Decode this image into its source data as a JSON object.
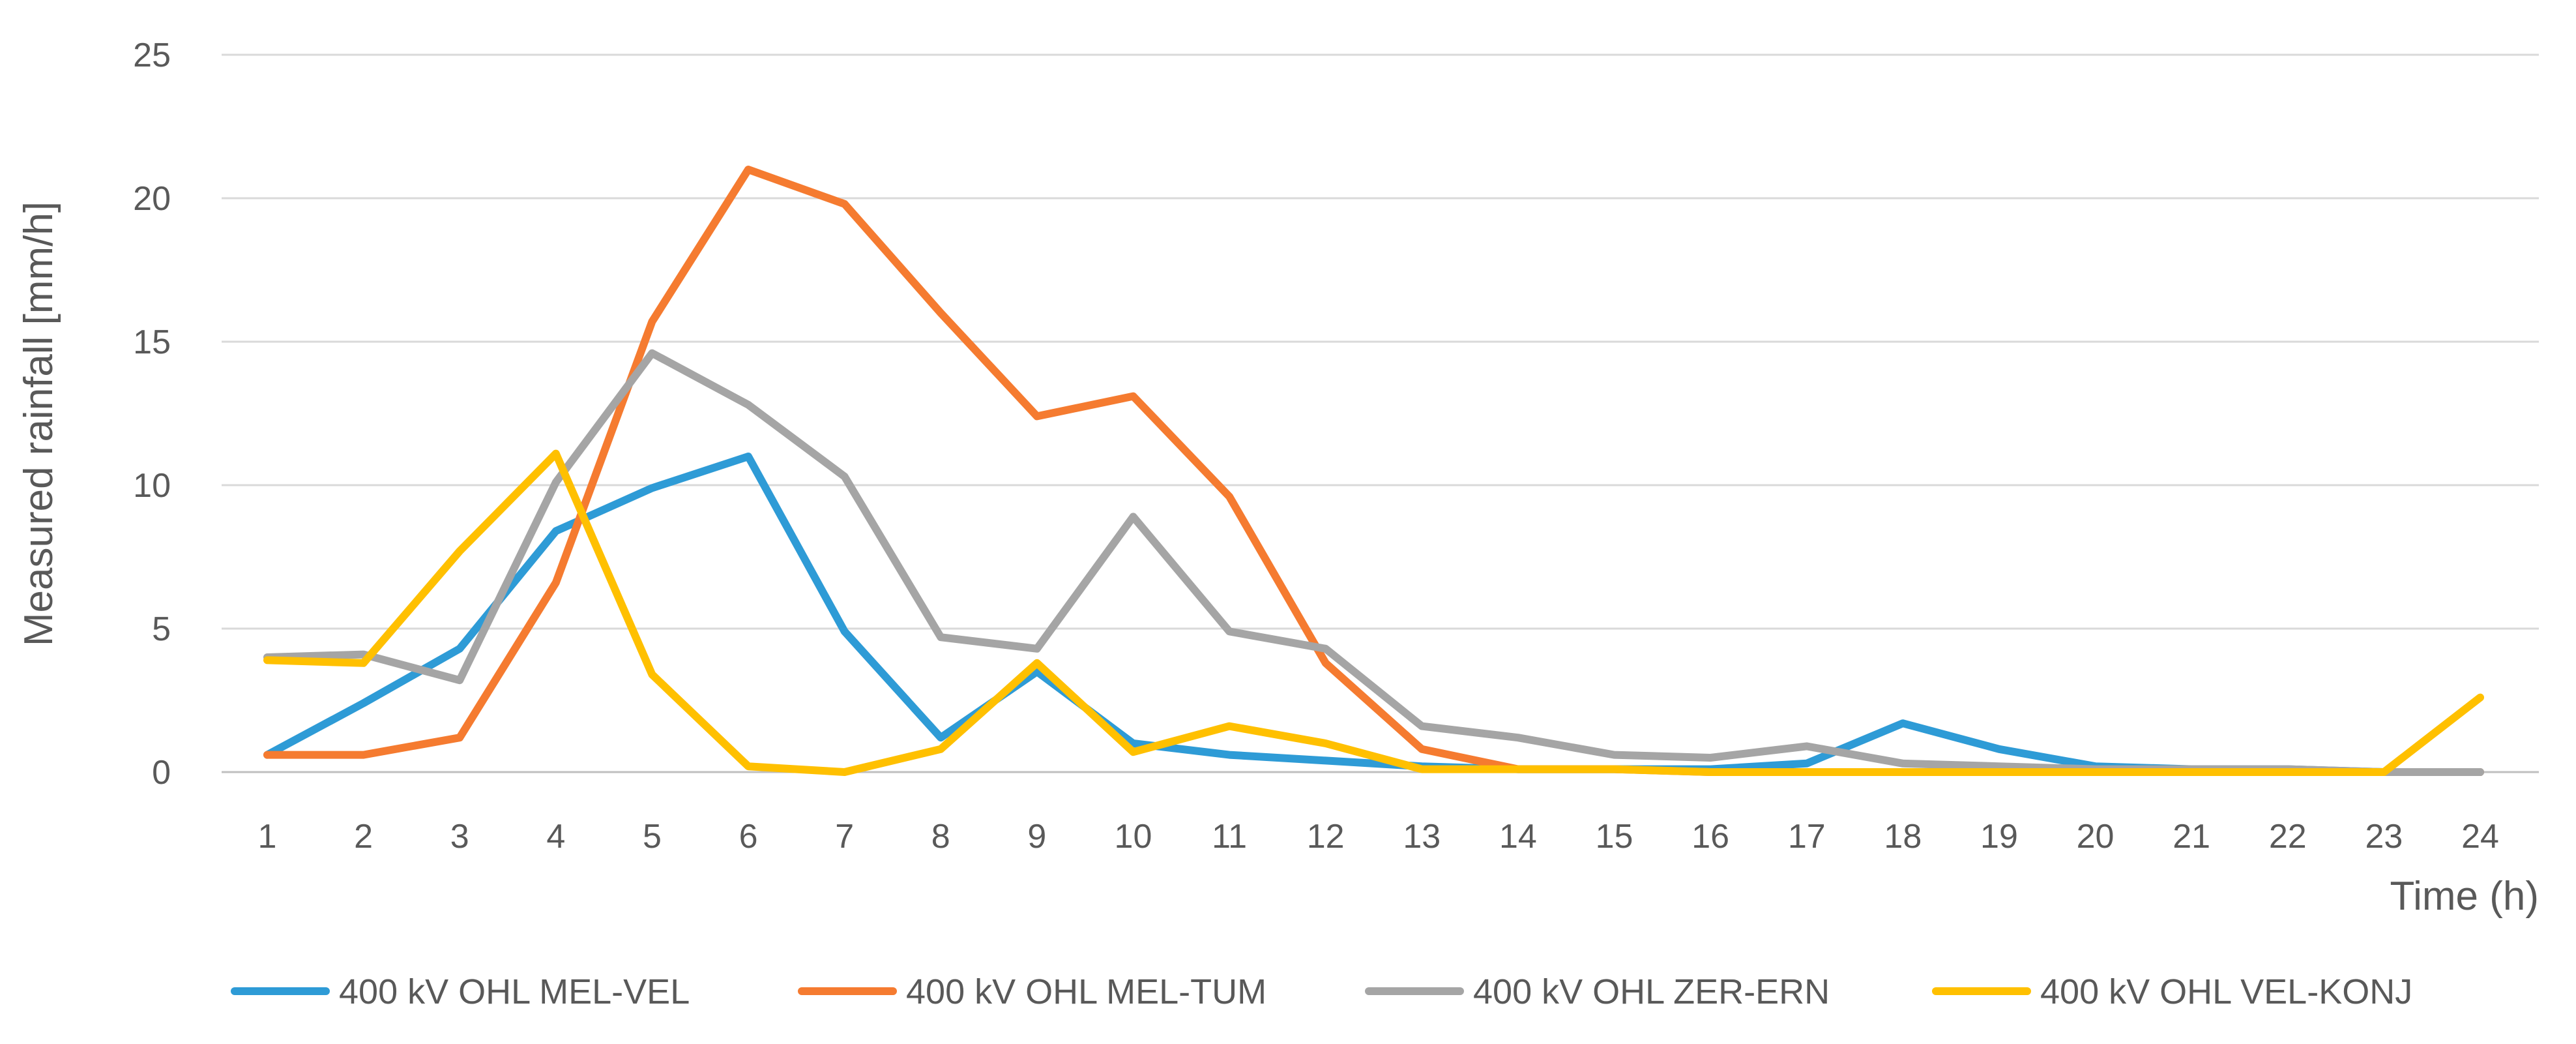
{
  "chart_data": {
    "type": "line",
    "title": "",
    "xlabel": "Time (h)",
    "ylabel": "Measured rainfall  [mm/h]",
    "ylim": [
      0,
      25
    ],
    "yticks": [
      "0",
      "5",
      "10",
      "15",
      "20",
      "25"
    ],
    "grid": true,
    "legend_position": "bottom",
    "categories": [
      "1",
      "2",
      "3",
      "4",
      "5",
      "6",
      "7",
      "8",
      "9",
      "10",
      "11",
      "12",
      "13",
      "14",
      "15",
      "16",
      "17",
      "18",
      "19",
      "20",
      "21",
      "22",
      "23",
      "24"
    ],
    "series": [
      {
        "name": "400 kV OHL MEL-VEL",
        "color": "#2E9BD6",
        "values": [
          0.6,
          2.4,
          4.3,
          8.4,
          9.9,
          11.0,
          4.9,
          1.2,
          3.5,
          1.0,
          0.6,
          0.4,
          0.2,
          0.1,
          0.1,
          0.1,
          0.3,
          1.7,
          0.8,
          0.2,
          0.1,
          0.1,
          0.0,
          0.0
        ]
      },
      {
        "name": "400 kV OHL MEL-TUM",
        "color": "#F57B30",
        "values": [
          0.6,
          0.6,
          1.2,
          6.6,
          15.7,
          21.0,
          19.8,
          16.0,
          12.4,
          13.1,
          9.6,
          3.8,
          0.8,
          0.1,
          0.1,
          0.0,
          0.0,
          0.0,
          0.0,
          0.0,
          0.0,
          0.0,
          0.0,
          0.0
        ]
      },
      {
        "name": "400 kV OHL ZER-ERN",
        "color": "#A5A5A5",
        "values": [
          4.0,
          4.1,
          3.2,
          10.1,
          14.6,
          12.8,
          10.3,
          4.7,
          4.3,
          8.9,
          4.9,
          4.3,
          1.6,
          1.2,
          0.6,
          0.5,
          0.9,
          0.3,
          0.2,
          0.1,
          0.1,
          0.1,
          0.0,
          0.0
        ]
      },
      {
        "name": "400 kV OHL VEL-KONJ",
        "color": "#FFC000",
        "values": [
          3.9,
          3.8,
          7.7,
          11.1,
          3.4,
          0.2,
          0.0,
          0.8,
          3.8,
          0.7,
          1.6,
          1.0,
          0.1,
          0.1,
          0.1,
          0.0,
          0.0,
          0.0,
          0.0,
          0.0,
          0.0,
          0.0,
          0.0,
          2.6
        ]
      }
    ]
  }
}
